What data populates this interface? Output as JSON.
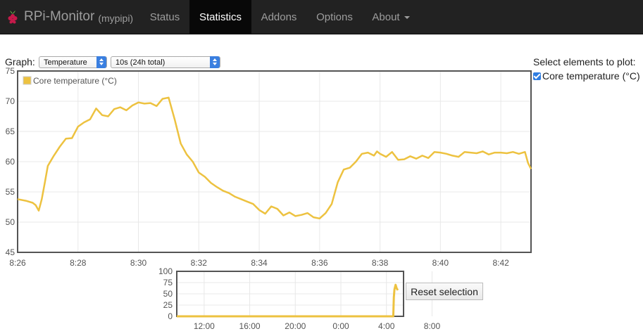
{
  "navbar": {
    "brand": "RPi-Monitor",
    "host": "(mypipi)",
    "items": [
      {
        "label": "Status"
      },
      {
        "label": "Statistics"
      },
      {
        "label": "Addons"
      },
      {
        "label": "Options"
      },
      {
        "label": "About"
      }
    ],
    "active": "Statistics"
  },
  "controls": {
    "graph_label": "Graph:",
    "graph_select": "Temperature",
    "period_select": "10s (24h total)",
    "select_elements_title": "Select elements to plot:",
    "elements": [
      {
        "label": "Core temperature (°C)",
        "checked": true
      }
    ],
    "reset_button": "Reset selection"
  },
  "colors": {
    "series": "#edc240",
    "navbar_bg": "#222222",
    "navbar_active": "#080808"
  },
  "chart_data": [
    {
      "type": "line",
      "legend": [
        "Core temperature (°C)"
      ],
      "legend_position": "top-left",
      "grid": true,
      "xlim": [
        "8:26",
        "8:43"
      ],
      "ylim": [
        45,
        75
      ],
      "x_ticks": [
        "8:26",
        "8:28",
        "8:30",
        "8:32",
        "8:34",
        "8:36",
        "8:38",
        "8:40",
        "8:42"
      ],
      "y_ticks": [
        45,
        50,
        55,
        60,
        65,
        70,
        75
      ],
      "series": [
        {
          "name": "Core temperature (°C)",
          "x_minutes": [
            0,
            0.3,
            0.5,
            0.6,
            0.7,
            0.8,
            0.9,
            1.0,
            1.2,
            1.4,
            1.6,
            1.8,
            2.0,
            2.2,
            2.4,
            2.6,
            2.8,
            3.0,
            3.2,
            3.4,
            3.6,
            3.8,
            4.0,
            4.2,
            4.4,
            4.6,
            4.8,
            5.0,
            5.2,
            5.4,
            5.6,
            5.8,
            6.0,
            6.2,
            6.4,
            6.6,
            6.8,
            7.0,
            7.2,
            7.4,
            7.6,
            7.8,
            8.0,
            8.2,
            8.4,
            8.6,
            8.8,
            9.0,
            9.2,
            9.4,
            9.6,
            9.8,
            10.0,
            10.2,
            10.4,
            10.6,
            10.8,
            11.0,
            11.2,
            11.4,
            11.6,
            11.8,
            11.9,
            12.0,
            12.2,
            12.4,
            12.6,
            12.8,
            13.0,
            13.2,
            13.4,
            13.6,
            13.8,
            14.0,
            14.2,
            14.4,
            14.6,
            14.8,
            15.0,
            15.2,
            15.4,
            15.6,
            15.8,
            16.0,
            16.2,
            16.4,
            16.6,
            16.8,
            16.9,
            17.0
          ],
          "values": [
            53.8,
            53.5,
            53.2,
            52.8,
            51.9,
            53.8,
            56.5,
            59.3,
            61.0,
            62.5,
            63.8,
            63.9,
            65.8,
            66.5,
            67.0,
            68.8,
            67.7,
            67.5,
            68.7,
            69.0,
            68.5,
            69.3,
            69.8,
            69.6,
            69.7,
            69.2,
            70.4,
            70.6,
            67.0,
            63.0,
            61.2,
            60.0,
            58.2,
            57.5,
            56.5,
            55.8,
            55.2,
            54.8,
            54.2,
            53.8,
            53.4,
            53.0,
            52.0,
            51.4,
            52.6,
            52.2,
            51.1,
            51.6,
            51.0,
            51.2,
            51.5,
            50.8,
            50.6,
            51.5,
            53.0,
            56.6,
            58.7,
            59.0,
            60.0,
            61.3,
            61.5,
            61.0,
            61.7,
            61.3,
            60.8,
            61.6,
            60.3,
            60.4,
            60.9,
            60.5,
            61.0,
            60.6,
            61.6,
            61.5,
            61.3,
            61.0,
            60.8,
            61.6,
            61.5,
            61.4,
            61.7,
            61.2,
            61.5,
            61.5,
            61.4,
            61.6,
            61.3,
            61.6,
            59.8,
            58.8
          ]
        }
      ]
    },
    {
      "type": "line",
      "role": "overview",
      "grid": true,
      "ylim": [
        0,
        100
      ],
      "y_ticks": [
        0,
        25,
        50,
        75,
        100
      ],
      "x_ticks": [
        "12:00",
        "16:00",
        "20:00",
        "0:00",
        "4:00",
        "8:00"
      ],
      "series": [
        {
          "name": "Core temperature (°C)",
          "x_hours": [
            0,
            19.0,
            19.05,
            19.1,
            19.2,
            19.3,
            19.4
          ],
          "values": [
            0,
            0,
            42,
            60,
            70,
            62,
            58
          ]
        }
      ]
    }
  ]
}
